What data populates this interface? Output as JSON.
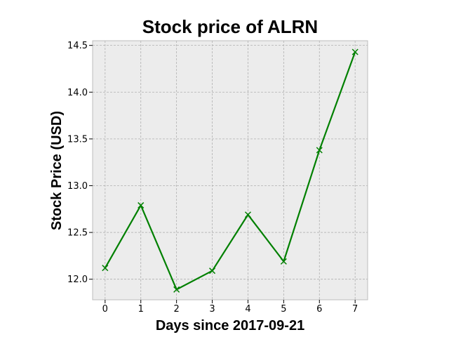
{
  "chart_data": {
    "type": "line",
    "title": "Stock price of ALRN",
    "xlabel": "Days since 2017-09-21",
    "ylabel": "Stock Price (USD)",
    "x": [
      0,
      1,
      2,
      3,
      4,
      5,
      6,
      7
    ],
    "series": [
      {
        "values": [
          12.12,
          12.79,
          11.89,
          12.09,
          12.69,
          12.19,
          13.38,
          14.43
        ]
      }
    ],
    "xlim": [
      -0.35,
      7.35
    ],
    "ylim": [
      11.78,
      14.55
    ],
    "xticks": [
      0,
      1,
      2,
      3,
      4,
      5,
      6,
      7
    ],
    "xtick_labels": [
      "0",
      "1",
      "2",
      "3",
      "4",
      "5",
      "6",
      "7"
    ],
    "yticks": [
      12.0,
      12.5,
      13.0,
      13.5,
      14.0,
      14.5
    ],
    "ytick_labels": [
      "12.0",
      "12.5",
      "13.0",
      "13.5",
      "14.0",
      "14.5"
    ],
    "grid": true,
    "marker": "x",
    "line_color": "#008000",
    "plot_background": "#ececec",
    "grid_color": "#b0b0b0"
  }
}
